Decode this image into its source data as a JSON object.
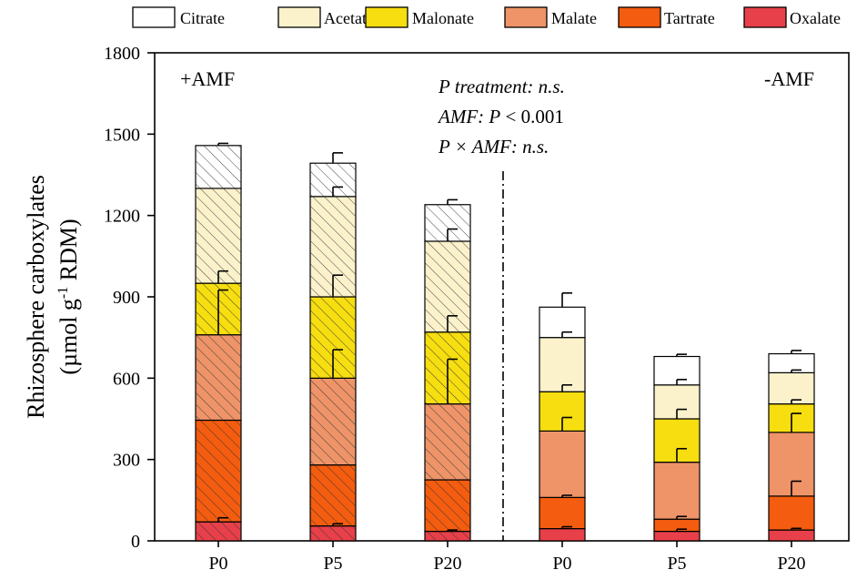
{
  "chart_data": {
    "type": "bar",
    "stacked": true,
    "title": "",
    "xlabel": "",
    "ylabel_line1": "Rhizosphere carboxylates",
    "ylabel_line2": "(µmol g",
    "ylabel_sup": "-1",
    "ylabel_line2_end": " RDM)",
    "ylim": [
      0,
      1800
    ],
    "yticks": [
      0,
      300,
      600,
      900,
      1200,
      1500,
      1800
    ],
    "ytick_labels": [
      "0",
      "300",
      "600",
      "900",
      "1200",
      "1500",
      "1800"
    ],
    "categories": [
      "P0",
      "P5",
      "P20",
      "P0",
      "P5",
      "P20"
    ],
    "groups": [
      {
        "label": "+AMF",
        "indices": [
          0,
          1,
          2
        ],
        "hatched": true
      },
      {
        "label": "-AMF",
        "indices": [
          3,
          4,
          5
        ],
        "hatched": false
      }
    ],
    "series": [
      {
        "name": "Oxalate",
        "color": "#e8404a",
        "values": [
          70,
          55,
          35,
          45,
          35,
          40
        ],
        "errors": [
          15,
          8,
          5,
          7,
          8,
          6
        ]
      },
      {
        "name": "Tartrate",
        "color": "#f45c0f",
        "values": [
          375,
          225,
          190,
          115,
          45,
          125
        ],
        "errors": [
          0,
          0,
          0,
          8,
          10,
          55
        ]
      },
      {
        "name": "Malate",
        "color": "#ee9468",
        "values": [
          315,
          320,
          280,
          245,
          210,
          235
        ],
        "errors": [
          165,
          105,
          165,
          50,
          50,
          70
        ]
      },
      {
        "name": "Malonate",
        "color": "#f6de10",
        "values": [
          190,
          300,
          265,
          145,
          160,
          105
        ],
        "errors": [
          45,
          80,
          60,
          25,
          35,
          15
        ]
      },
      {
        "name": "Acetate",
        "color": "#fbf2cc",
        "values": [
          350,
          370,
          335,
          200,
          125,
          115
        ],
        "errors": [
          0,
          35,
          45,
          20,
          20,
          10
        ]
      },
      {
        "name": "Citrate",
        "color": "#ffffff",
        "values": [
          158,
          123,
          135,
          112,
          105,
          70
        ],
        "errors": [
          8,
          38,
          18,
          52,
          8,
          12
        ]
      }
    ],
    "legend_order": [
      "Citrate",
      "Acetate",
      "Malonate",
      "Malate",
      "Tartrate",
      "Oxalate"
    ],
    "legend_position": "top",
    "annotations": {
      "amf_plus": "+AMF",
      "amf_minus": "-AMF",
      "stat1": "P treatment: n.s.",
      "stat2_pre": "AMF: ",
      "stat2_p": "P",
      "stat2_post": " < 0.001",
      "stat3": "P × AMF: n.s."
    }
  }
}
